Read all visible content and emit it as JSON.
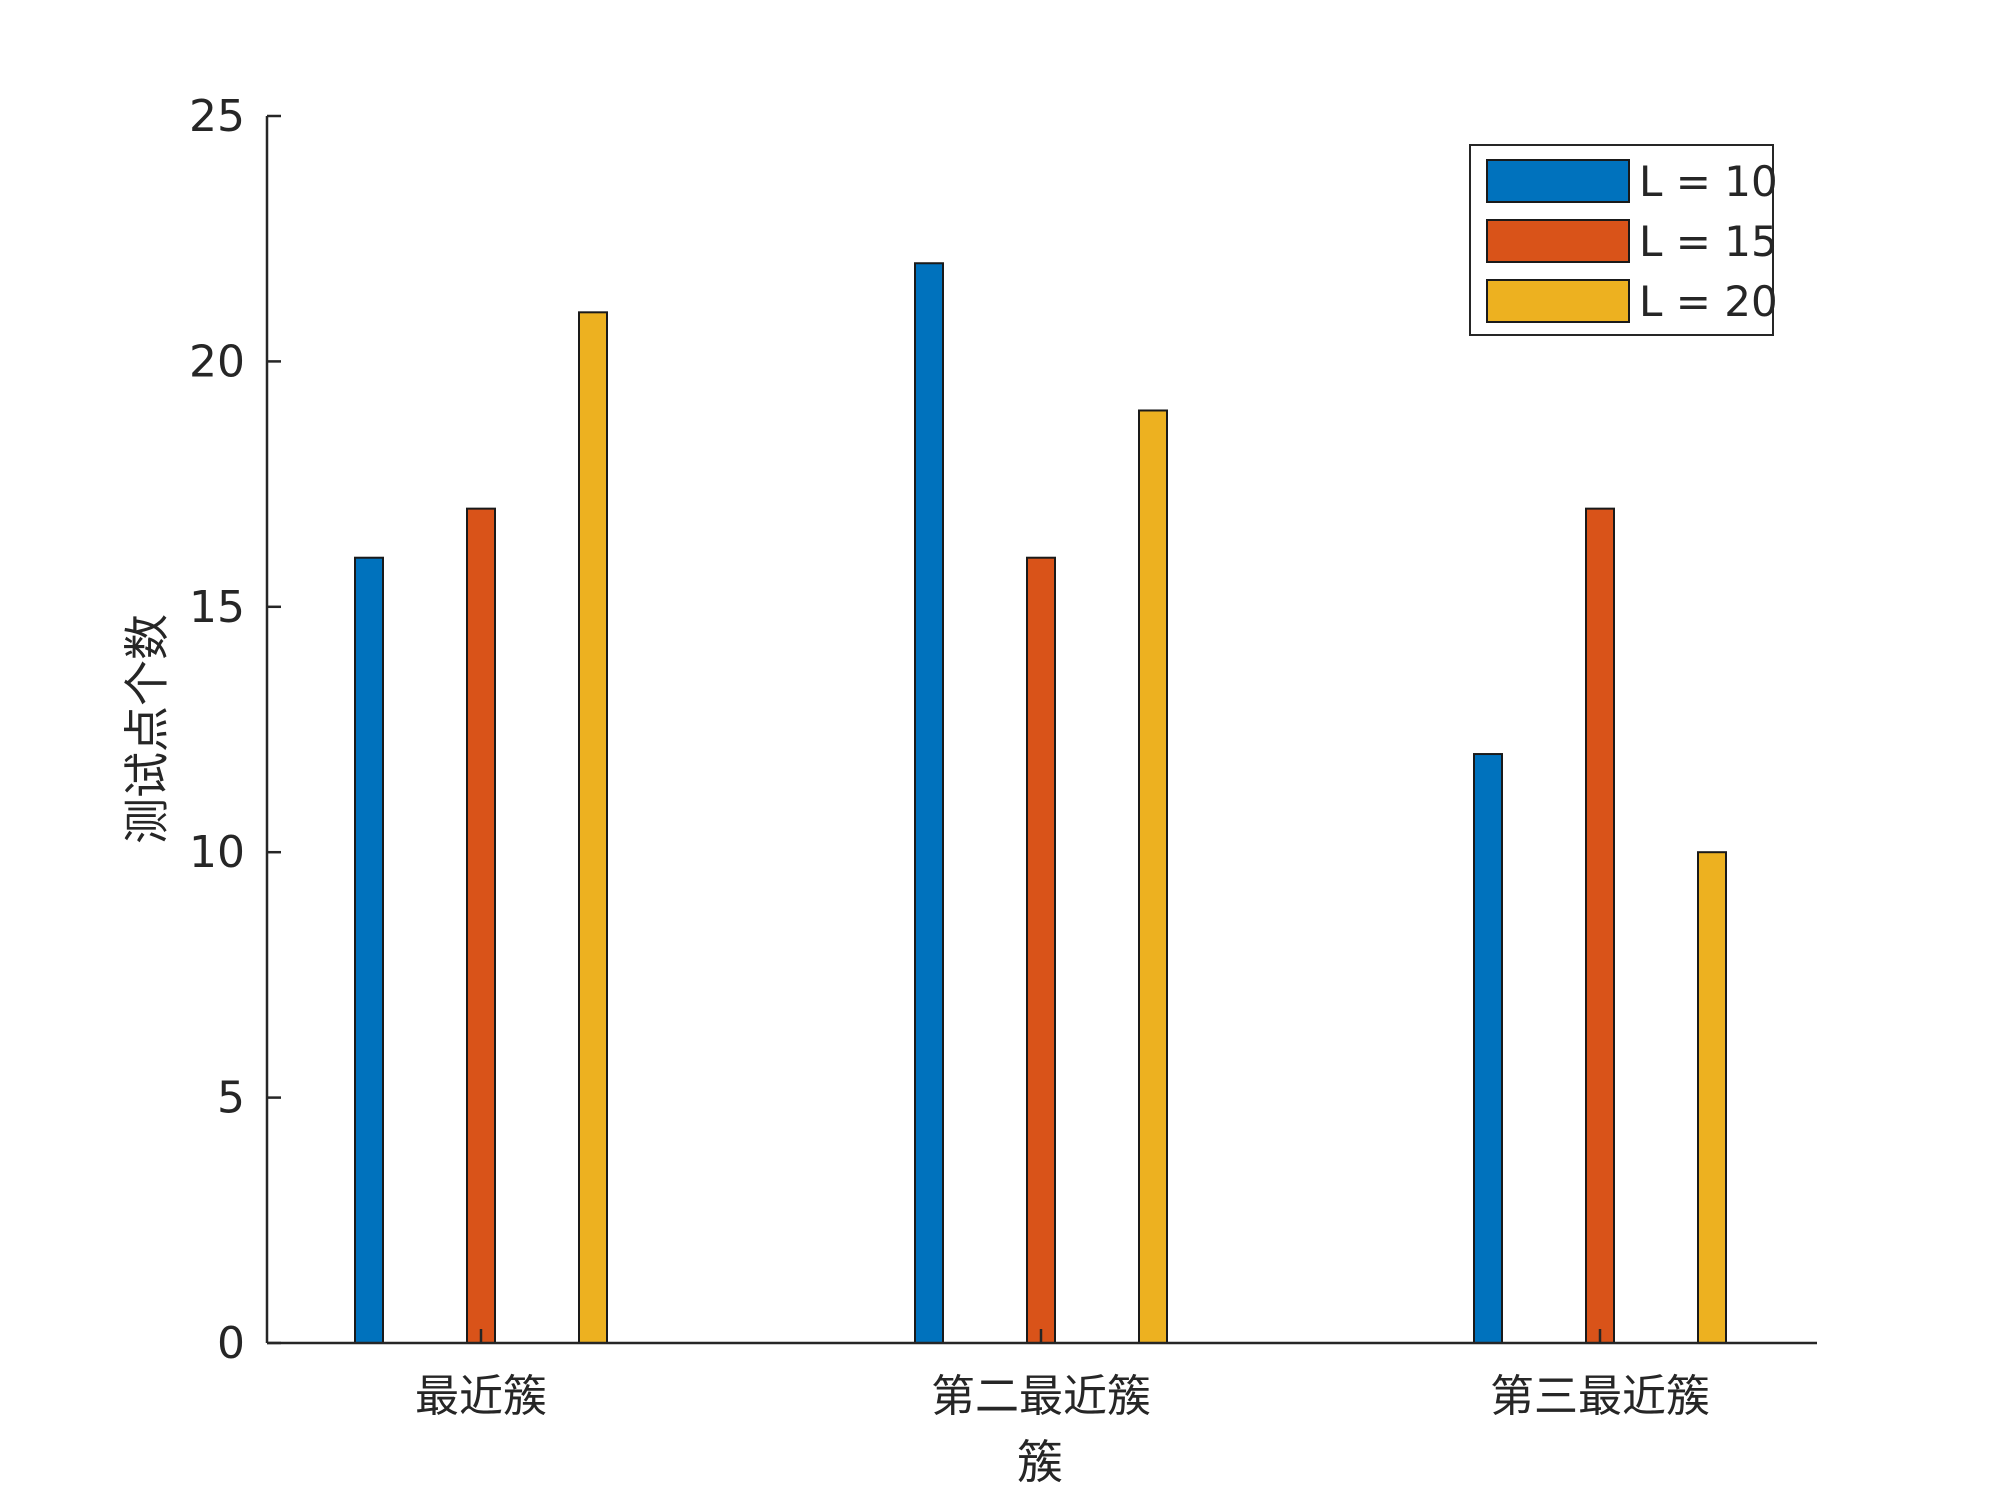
{
  "chart_data": {
    "type": "bar",
    "title": "",
    "xlabel": "簇",
    "ylabel": "测试点个数",
    "categories": [
      "最近簇",
      "第二最近簇",
      "第三最近簇"
    ],
    "series": [
      {
        "name": "L = 10",
        "values": [
          16,
          22,
          12
        ],
        "color": "#0072BD"
      },
      {
        "name": "L = 15",
        "values": [
          17,
          16,
          17
        ],
        "color": "#D95319"
      },
      {
        "name": "L = 20",
        "values": [
          21,
          19,
          10
        ],
        "color": "#EDB120"
      }
    ],
    "ylim": [
      0,
      25
    ],
    "yticks": [
      "0",
      "5",
      "10",
      "15",
      "20",
      "25"
    ],
    "grid": false,
    "legend_position": "top-right"
  }
}
